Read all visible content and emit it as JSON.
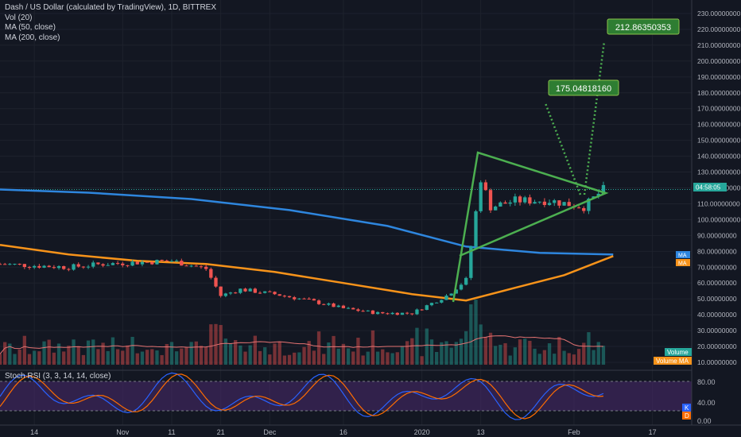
{
  "chart_data": {
    "type": "candlestick",
    "title": "Dash / US Dollar (calculated by TradingView), 1D, BITTREX",
    "indicators": [
      "Vol (20)",
      "MA (50, close)",
      "MA (200, close)"
    ],
    "price_axis": {
      "ticks": [
        "230.00000000",
        "220.00000000",
        "210.00000000",
        "200.00000000",
        "190.00000000",
        "180.00000000",
        "170.00000000",
        "160.00000000",
        "150.00000000",
        "140.00000000",
        "130.00000000",
        "120.00000000",
        "110.00000000",
        "100.00000000",
        "90.00000000",
        "80.00000000",
        "70.00000000",
        "60.00000000",
        "50.00000000",
        "40.00000000",
        "30.00000000",
        "20.00000000",
        "10.00000000"
      ],
      "ylim": [
        10,
        230
      ]
    },
    "time_axis": {
      "ticks": [
        "14",
        "Nov",
        "11",
        "21",
        "Dec",
        "16",
        "2020",
        "13",
        "Feb",
        "17"
      ],
      "xlim": [
        "2019-10-07",
        "2020-02-25"
      ]
    },
    "current_price_label": "04:58:05",
    "badges": {
      "ma": "MA",
      "ma2": "MA",
      "volume": "Volume",
      "volume_ma": "Volume MA"
    },
    "targets": [
      {
        "label": "175.04818160",
        "value": 175.0481816
      },
      {
        "label": "212.86350353",
        "value": 212.86350353
      }
    ],
    "price_series": {
      "dates": [
        "2019-10-07",
        "2019-10-14",
        "2019-10-21",
        "2019-10-28",
        "2019-11-04",
        "2019-11-11",
        "2019-11-18",
        "2019-11-21",
        "2019-11-25",
        "2019-12-02",
        "2019-12-09",
        "2019-12-16",
        "2019-12-23",
        "2019-12-30",
        "2020-01-06",
        "2020-01-10",
        "2020-01-13",
        "2020-01-15",
        "2020-01-20",
        "2020-01-27",
        "2020-02-03",
        "2020-02-07"
      ],
      "close": [
        72,
        71,
        70,
        72,
        73,
        74,
        69,
        52,
        56,
        53,
        49,
        44,
        41,
        41,
        52,
        62,
        126,
        108,
        112,
        112,
        108,
        119
      ]
    },
    "ma50": {
      "dates": [
        "2019-10-07",
        "2019-10-21",
        "2019-11-04",
        "2019-11-18",
        "2019-12-02",
        "2019-12-16",
        "2019-12-30",
        "2020-01-10",
        "2020-01-20",
        "2020-01-30",
        "2020-02-09"
      ],
      "values": [
        84,
        78,
        74,
        72,
        67,
        60,
        53,
        49,
        57,
        65,
        77
      ]
    },
    "ma200": {
      "dates": [
        "2019-10-07",
        "2019-10-25",
        "2019-11-15",
        "2019-12-05",
        "2019-12-25",
        "2020-01-10",
        "2020-01-25",
        "2020-02-09"
      ],
      "values": [
        119,
        117,
        113,
        106,
        96,
        83,
        79,
        78
      ]
    },
    "stoch_rsi": {
      "title": "Stoch RSI (3, 3, 14, 14, close)",
      "ticks": [
        "80.00",
        "40.00",
        "0.00"
      ],
      "ylim": [
        0,
        100
      ],
      "k_label": "K",
      "d_label": "D"
    },
    "colors": {
      "background": "#131722",
      "up": "#26a69a",
      "down": "#ef5350",
      "ma50": "#f7931a",
      "ma200": "#2e86de",
      "pattern": "#4caf50",
      "target_label_bg": "#2e7d32",
      "rsi_k": "#2962ff",
      "rsi_d": "#ff6d00",
      "rsi_band": "#4a2a6e"
    }
  }
}
